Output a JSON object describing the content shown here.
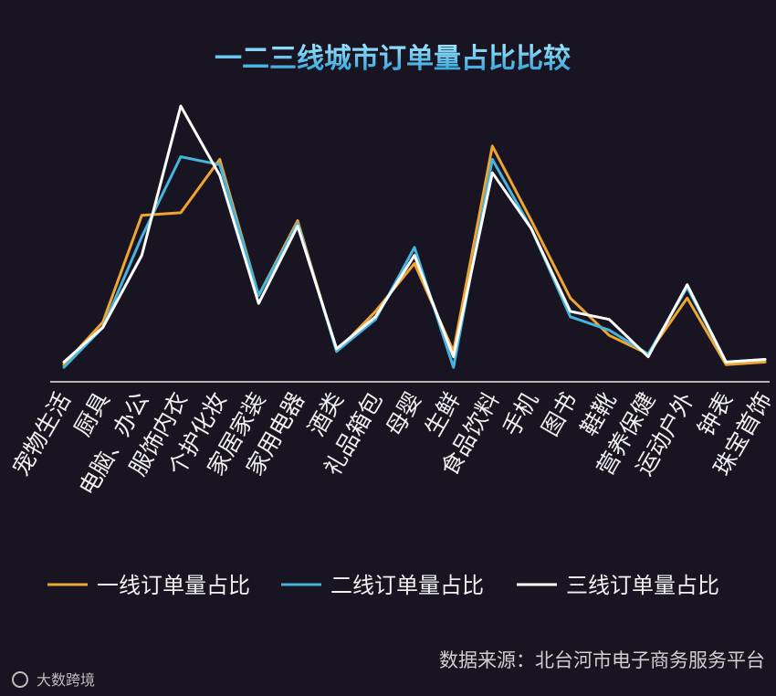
{
  "chart_data": {
    "type": "line",
    "title": "一二三线城市订单量占比比较",
    "xlabel": "",
    "ylabel": "",
    "ylim": [
      0,
      100
    ],
    "grid": false,
    "legend_position": "bottom",
    "categories": [
      "宠物生活",
      "厨具",
      "电脑、办公",
      "服饰内衣",
      "个护化妆",
      "家居家装",
      "家用电器",
      "酒类",
      "礼品箱包",
      "母婴",
      "生鲜",
      "食品饮料",
      "手机",
      "图书",
      "鞋靴",
      "营养保健",
      "运动户外",
      "钟表",
      "珠宝首饰"
    ],
    "series": [
      {
        "name": "一线订单量占比",
        "color": "#f0a531",
        "values": [
          4,
          20,
          60,
          61,
          81,
          30,
          58,
          9,
          24,
          42,
          9,
          86,
          58,
          29,
          15,
          8,
          29,
          4,
          5
        ]
      },
      {
        "name": "二线订单量占比",
        "color": "#46b4dc",
        "values": [
          3,
          18,
          52,
          82,
          79,
          30,
          57,
          9,
          21,
          48,
          3,
          81,
          55,
          22,
          17,
          8,
          33,
          5,
          6
        ]
      },
      {
        "name": "三线订单量占比",
        "color": "#ffffff",
        "values": [
          5,
          18,
          45,
          101,
          75,
          27,
          56,
          10,
          22,
          45,
          7,
          76,
          55,
          24,
          21,
          7,
          34,
          5,
          6
        ]
      }
    ]
  },
  "footer": {
    "source": "数据来源：北台河市电子商务服务平台",
    "watermark": "大数跨境"
  }
}
